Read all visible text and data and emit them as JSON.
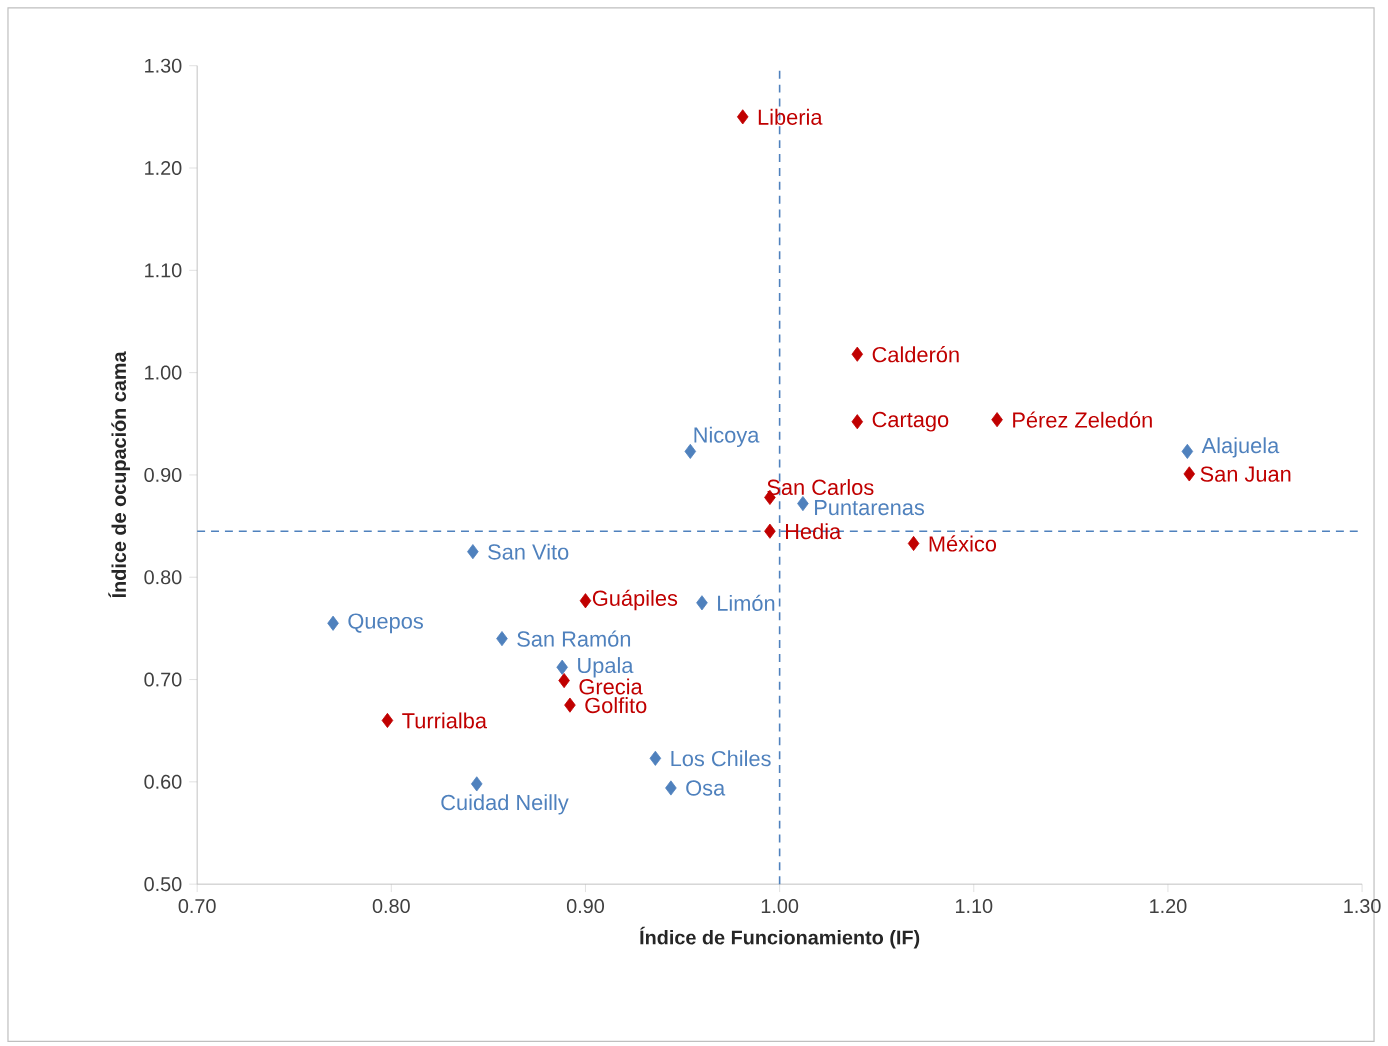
{
  "chart_data": {
    "type": "scatter",
    "xlabel": "Índice de Funcionamiento (IF)",
    "ylabel": "Índice de ocupación cama",
    "xlim": [
      0.7,
      1.3
    ],
    "ylim": [
      0.5,
      1.3
    ],
    "xticks": [
      {
        "value": 0.7,
        "label": "0.70"
      },
      {
        "value": 0.8,
        "label": "0.80"
      },
      {
        "value": 0.9,
        "label": "0.90"
      },
      {
        "value": 1.0,
        "label": "1.00"
      },
      {
        "value": 1.1,
        "label": "1.10"
      },
      {
        "value": 1.2,
        "label": "1.20"
      },
      {
        "value": 1.3,
        "label": "1.30"
      }
    ],
    "yticks": [
      {
        "value": 0.5,
        "label": "0.50"
      },
      {
        "value": 0.6,
        "label": "0.60"
      },
      {
        "value": 0.7,
        "label": "0.70"
      },
      {
        "value": 0.8,
        "label": "0.80"
      },
      {
        "value": 0.9,
        "label": "0.90"
      },
      {
        "value": 1.0,
        "label": "1.00"
      },
      {
        "value": 1.1,
        "label": "1.10"
      },
      {
        "value": 1.2,
        "label": "1.20"
      },
      {
        "value": 1.3,
        "label": "1.30"
      }
    ],
    "marker": "diamond",
    "grid": false,
    "legend": false,
    "ref_lines": [
      {
        "axis": "x",
        "value": 1.0,
        "color": "#4f81bd",
        "line_style": "dashed"
      },
      {
        "axis": "y",
        "value": 0.845,
        "color": "#4f81bd",
        "line_style": "dashed"
      }
    ],
    "series": [
      {
        "color": "#4f81bd",
        "x": [
          0.954,
          1.012,
          1.21,
          0.842,
          0.96,
          0.77,
          0.857,
          0.888,
          0.936,
          0.944,
          0.844
        ],
        "values": [
          0.923,
          0.872,
          0.923,
          0.825,
          0.775,
          0.755,
          0.74,
          0.712,
          0.623,
          0.594,
          0.598
        ],
        "value_labels": [
          "Nicoya",
          "Puntarenas",
          "Alajuela",
          "San Vito",
          "Limón",
          "Quepos",
          "San Ramón",
          "Upala",
          "Los Chiles",
          "Osa",
          "Cuidad Neilly"
        ]
      },
      {
        "color": "#c00000",
        "x": [
          0.981,
          1.04,
          1.04,
          1.112,
          1.211,
          0.995,
          0.995,
          1.069,
          0.9,
          0.889,
          0.892,
          0.798
        ],
        "values": [
          1.25,
          1.018,
          0.952,
          0.954,
          0.901,
          0.878,
          0.845,
          0.833,
          0.777,
          0.699,
          0.675,
          0.66
        ],
        "value_labels": [
          "Liberia",
          "Calderón",
          "Cartago",
          "Pérez Zeledón",
          "San Juan",
          "San Carlos",
          "Hedia",
          "México",
          "Guápiles",
          "Grecia",
          "Golfito",
          "Turrialba"
        ]
      }
    ]
  }
}
